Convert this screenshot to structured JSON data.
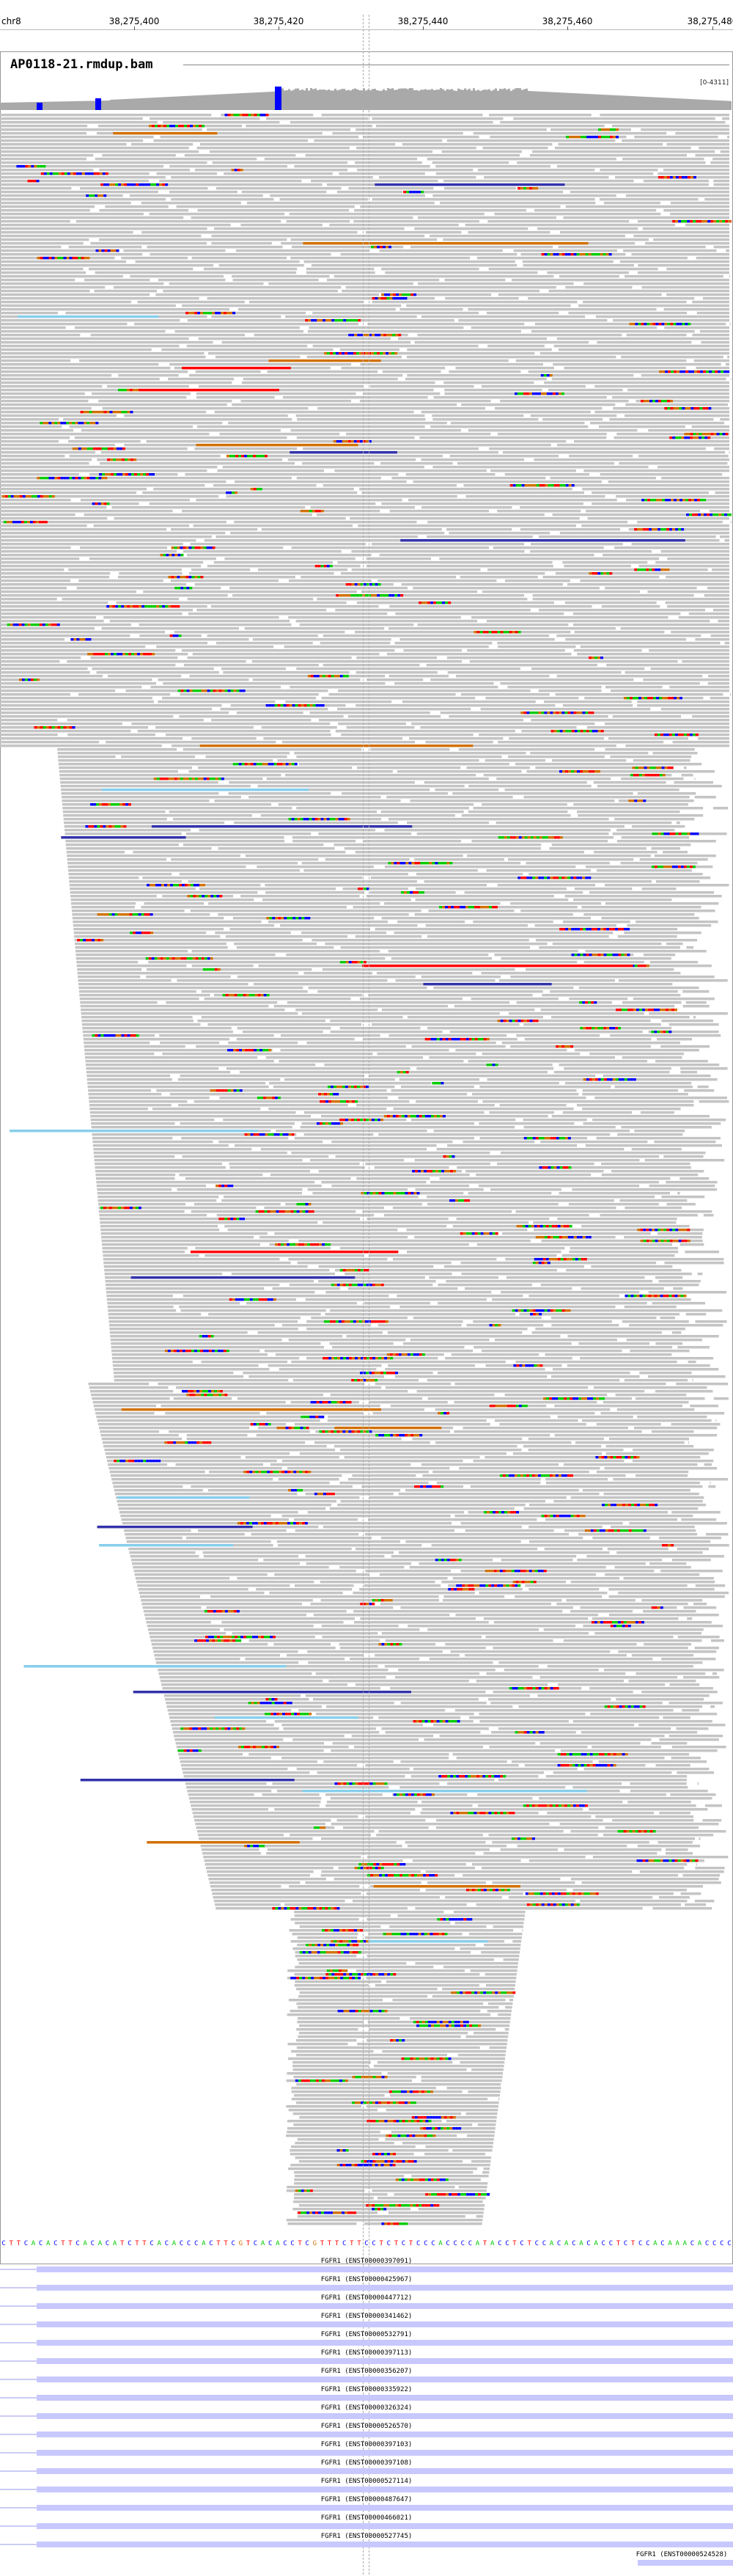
{
  "ruler": {
    "chromosome": "chr8",
    "ticks": [
      "38,275,400",
      "38,275,420",
      "38,275,440",
      "38,275,460",
      "38,275,480"
    ]
  },
  "track": {
    "title": "AP0118-21.rmdup.bam",
    "coverage_range": "[0-4311]"
  },
  "colors": {
    "coverage": "#a9a9a9",
    "read": "#c4c4c4",
    "mismatch_A": "#00cc00",
    "mismatch_C": "#0000ff",
    "mismatch_G": "#d17105",
    "mismatch_T": "#ff0000",
    "gene": "#c8c8ff",
    "gene_line": "#9a9aee"
  },
  "sequence": "CTTCACACTTCACACATCTTCACACCCACTTCGTCACACCTCGTTTCTTCCTCTCTCCCACCCCATACCTCTCCACACACACCTCTCCACAAACACCCC",
  "genes": [
    "FGFR1 (ENST00000397091)",
    "FGFR1 (ENST00000425967)",
    "FGFR1 (ENST00000447712)",
    "FGFR1 (ENST00000341462)",
    "FGFR1 (ENST00000532791)",
    "FGFR1 (ENST00000397113)",
    "FGFR1 (ENST00000356207)",
    "FGFR1 (ENST00000335922)",
    "FGFR1 (ENST00000326324)",
    "FGFR1 (ENST00000526570)",
    "FGFR1 (ENST00000397103)",
    "FGFR1 (ENST00000397108)",
    "FGFR1 (ENST00000527114)",
    "FGFR1 (ENST00000487647)",
    "FGFR1 (ENST00000466021)",
    "FGFR1 (ENST00000527745)"
  ],
  "last_gene": "FGFR1 (ENST00000524528)"
}
